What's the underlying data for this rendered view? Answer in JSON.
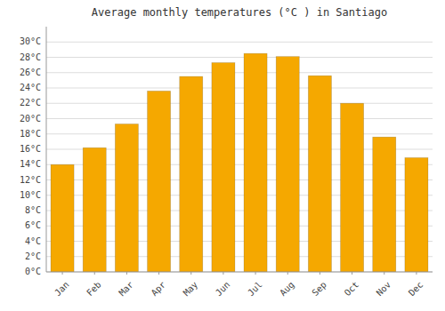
{
  "chart_data": {
    "type": "bar",
    "title": "Average monthly temperatures (°C ) in Santiago",
    "categories": [
      "Jan",
      "Feb",
      "Mar",
      "Apr",
      "May",
      "Jun",
      "Jul",
      "Aug",
      "Sep",
      "Oct",
      "Nov",
      "Dec"
    ],
    "values": [
      14.0,
      16.2,
      19.3,
      23.6,
      25.5,
      27.3,
      28.5,
      28.1,
      25.6,
      22.0,
      17.6,
      14.9
    ],
    "color": "#F5A800",
    "ylim": [
      0,
      32
    ],
    "yticks": [
      {
        "value": 0,
        "label": "0°C"
      },
      {
        "value": 2,
        "label": "2°C"
      },
      {
        "value": 4,
        "label": "4°C"
      },
      {
        "value": 6,
        "label": "6°C"
      },
      {
        "value": 8,
        "label": "8°C"
      },
      {
        "value": 10,
        "label": "10°C"
      },
      {
        "value": 12,
        "label": "12°C"
      },
      {
        "value": 14,
        "label": "14°C"
      },
      {
        "value": 16,
        "label": "16°C"
      },
      {
        "value": 18,
        "label": "18°C"
      },
      {
        "value": 20,
        "label": "20°C"
      },
      {
        "value": 22,
        "label": "22°C"
      },
      {
        "value": 24,
        "label": "24°C"
      },
      {
        "value": 26,
        "label": "26°C"
      },
      {
        "value": 28,
        "label": "28°C"
      },
      {
        "value": 30,
        "label": "30°C"
      }
    ],
    "grid": true
  }
}
